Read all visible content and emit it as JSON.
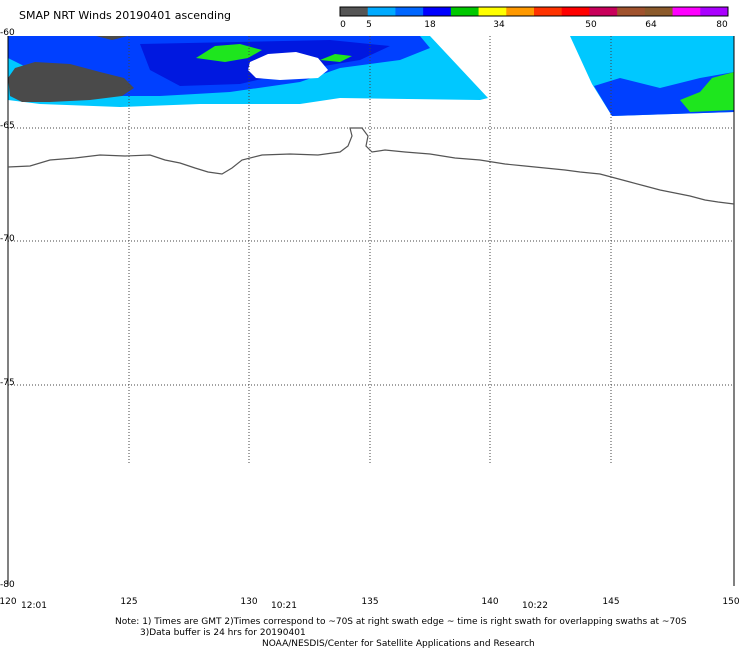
{
  "title": "SMAP NRT Winds 20190401 ascending",
  "colorbar": {
    "ticks": [
      "0",
      "5",
      "18",
      "34",
      "50",
      "64",
      "80"
    ],
    "colors": [
      "#555555",
      "#00aaff",
      "#0066ff",
      "#0000ff",
      "#00c800",
      "#ffff00",
      "#ff9900",
      "#ff3300",
      "#ff0000",
      "#c8005a",
      "#a0522d",
      "#8b5a2b",
      "#ff00ff",
      "#aa00ff"
    ]
  },
  "map": {
    "latitudes": [
      "-60",
      "-65",
      "-70",
      "-75",
      "-80"
    ],
    "longitudes": [
      "120",
      "125",
      "130",
      "135",
      "140",
      "145",
      "150"
    ],
    "times": [
      "12:01",
      "10:21",
      "10:22"
    ],
    "region_colors": {
      "light_blue": "#00c8ff",
      "blue": "#0040ff",
      "deep_blue": "#0018e0",
      "green": "#1ee61e",
      "gray": "#4a4a4a",
      "coast": "#555555",
      "grid": "#444444"
    }
  },
  "notes": [
    "Note: 1) Times are GMT 2)Times correspond to ~70S at right swath edge ~ time is right swath for overlapping swaths at ~70S",
    "3)Data buffer is 24 hrs for 20190401",
    "NOAA/NESDIS/Center for Satellite Applications and Research"
  ]
}
